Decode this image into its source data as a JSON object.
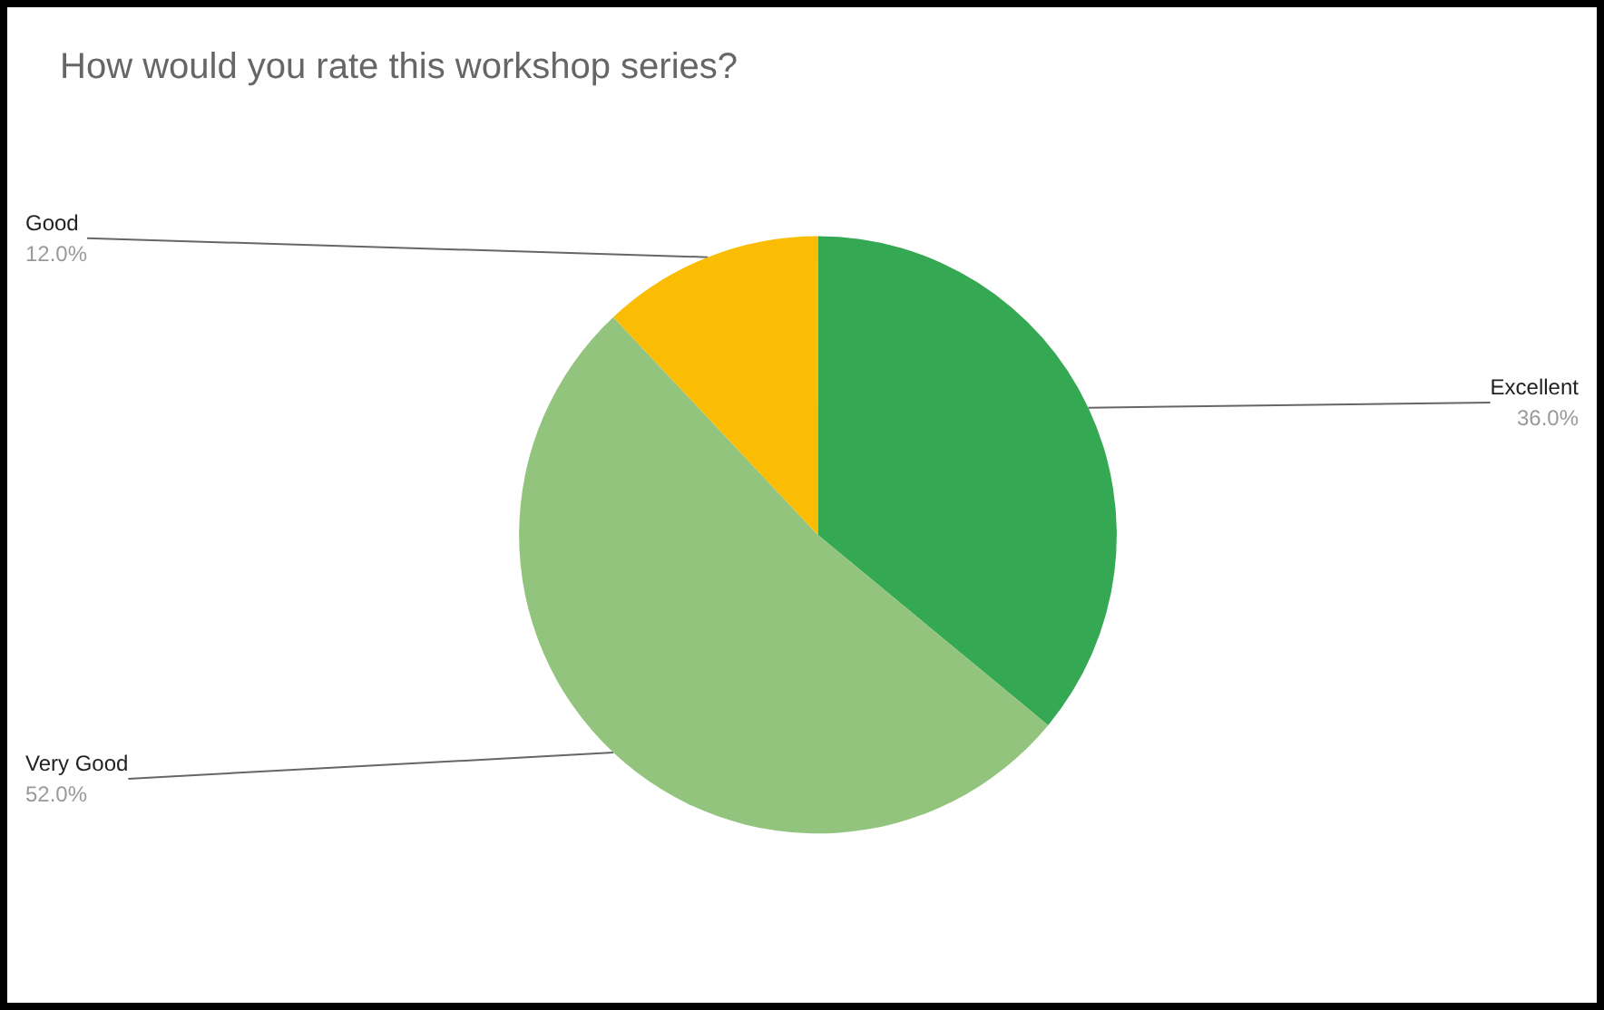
{
  "chart_data": {
    "type": "pie",
    "title": "How would you rate this workshop series?",
    "categories": [
      "Excellent",
      "Very Good",
      "Good"
    ],
    "values": [
      36,
      52,
      12
    ],
    "colors": [
      "#34a853",
      "#93c47d",
      "#fbbc04"
    ],
    "value_labels": [
      "36.0%",
      "52.0%",
      "12.0%"
    ],
    "legend": false
  }
}
